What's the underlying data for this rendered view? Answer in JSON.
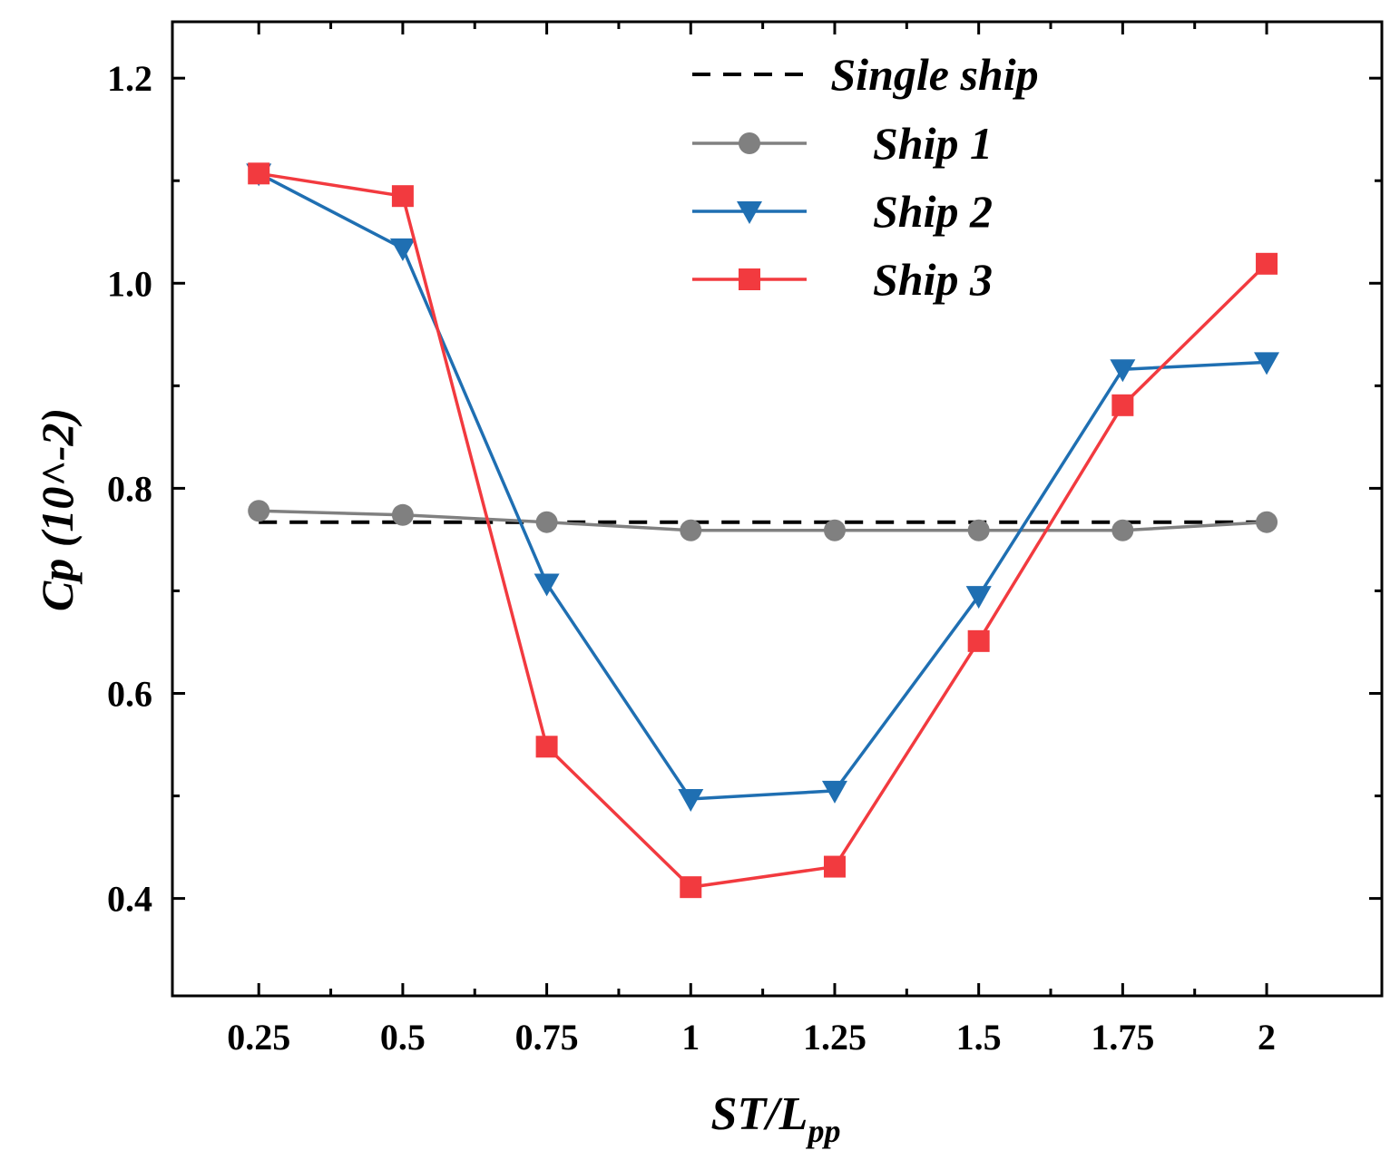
{
  "chart_data": {
    "type": "line",
    "xlabel": {
      "main": "ST/L",
      "sub": "pp"
    },
    "ylabel": "Cp (10^-2)",
    "categories": [
      "0.25",
      "0.5",
      "0.75",
      "1",
      "1.25",
      "1.5",
      "1.75",
      "2"
    ],
    "x": [
      0.25,
      0.5,
      0.75,
      1.0,
      1.25,
      1.5,
      1.75,
      2.0
    ],
    "xlim": [
      0.1,
      2.2
    ],
    "ylim": [
      0.305,
      1.255
    ],
    "yticks": [
      "0.4",
      "0.6",
      "0.8",
      "1.0",
      "1.2"
    ],
    "ytick_values": [
      0.4,
      0.6,
      0.8,
      1.0,
      1.2
    ],
    "grid": false,
    "legend_position": "top-center",
    "series": [
      {
        "name": "Single ship",
        "style": "dashed",
        "marker": "none",
        "color": "#000000",
        "values": [
          0.767,
          0.767,
          0.767,
          0.767,
          0.767,
          0.767,
          0.767,
          0.767
        ]
      },
      {
        "name": "Ship 1",
        "style": "solid",
        "marker": "circle",
        "color": "#808080",
        "values": [
          0.778,
          0.774,
          0.767,
          0.759,
          0.759,
          0.759,
          0.759,
          0.767
        ]
      },
      {
        "name": "Ship 2",
        "style": "solid",
        "marker": "triangle-down",
        "color": "#1f6fb2",
        "values": [
          1.107,
          1.034,
          0.707,
          0.497,
          0.505,
          0.695,
          0.916,
          0.923
        ]
      },
      {
        "name": "Ship 3",
        "style": "solid",
        "marker": "square",
        "color": "#f23a3f",
        "values": [
          1.107,
          1.085,
          0.548,
          0.411,
          0.431,
          0.651,
          0.881,
          1.019
        ]
      }
    ]
  }
}
